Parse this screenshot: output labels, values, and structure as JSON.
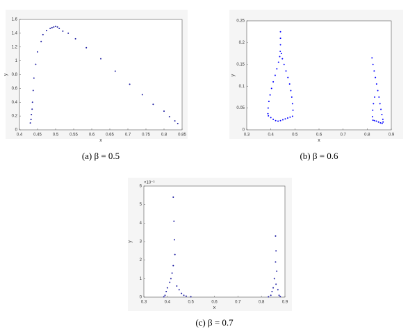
{
  "chart_data": [
    {
      "type": "scatter",
      "caption": "(a) β = 0.5",
      "xlabel": "x",
      "ylabel": "y",
      "color": "#1a1aa0",
      "x": [
        0.43,
        0.432,
        0.433,
        0.435,
        0.436,
        0.438,
        0.44,
        0.445,
        0.45,
        0.46,
        0.465,
        0.475,
        0.485,
        0.49,
        0.495,
        0.5,
        0.505,
        0.51,
        0.52,
        0.535,
        0.555,
        0.585,
        0.625,
        0.665,
        0.705,
        0.74,
        0.77,
        0.8,
        0.815,
        0.83,
        0.838
      ],
      "values": [
        0.1,
        0.15,
        0.22,
        0.3,
        0.4,
        0.57,
        0.75,
        0.95,
        1.13,
        1.28,
        1.38,
        1.44,
        1.47,
        1.48,
        1.49,
        1.5,
        1.49,
        1.47,
        1.43,
        1.4,
        1.32,
        1.19,
        1.03,
        0.85,
        0.66,
        0.51,
        0.37,
        0.27,
        0.19,
        0.13,
        0.09
      ],
      "xlim": [
        0.4,
        0.85
      ],
      "xticks": [
        0.4,
        0.45,
        0.5,
        0.55,
        0.6,
        0.65,
        0.7,
        0.75,
        0.8,
        0.85
      ],
      "ylim": [
        0,
        1.6
      ],
      "yticks": [
        0,
        0.2,
        0.4,
        0.6,
        0.8,
        1,
        1.2,
        1.4,
        1.6
      ]
    },
    {
      "type": "scatter",
      "caption": "(b) β = 0.6",
      "xlabel": "x",
      "ylabel": "y",
      "color": "#0000ff",
      "x": [
        0.44,
        0.44,
        0.44,
        0.439,
        0.437,
        0.432,
        0.425,
        0.418,
        0.41,
        0.403,
        0.397,
        0.392,
        0.389,
        0.388,
        0.39,
        0.4,
        0.41,
        0.42,
        0.43,
        0.44,
        0.45,
        0.46,
        0.47,
        0.48,
        0.49,
        0.492,
        0.49,
        0.487,
        0.483,
        0.478,
        0.471,
        0.463,
        0.455,
        0.448,
        0.444,
        0.82,
        0.824,
        0.829,
        0.834,
        0.839,
        0.844,
        0.849,
        0.853,
        0.857,
        0.861,
        0.865,
        0.866,
        0.862,
        0.855,
        0.847,
        0.838,
        0.83,
        0.824,
        0.822,
        0.823,
        0.826,
        0.831
      ],
      "values": [
        0.225,
        0.21,
        0.195,
        0.18,
        0.168,
        0.155,
        0.14,
        0.125,
        0.11,
        0.095,
        0.08,
        0.065,
        0.05,
        0.037,
        0.032,
        0.028,
        0.024,
        0.021,
        0.02,
        0.021,
        0.023,
        0.025,
        0.027,
        0.029,
        0.031,
        0.045,
        0.06,
        0.075,
        0.09,
        0.105,
        0.12,
        0.135,
        0.15,
        0.163,
        0.175,
        0.165,
        0.15,
        0.135,
        0.12,
        0.105,
        0.09,
        0.075,
        0.06,
        0.047,
        0.035,
        0.024,
        0.018,
        0.015,
        0.016,
        0.018,
        0.02,
        0.021,
        0.022,
        0.03,
        0.045,
        0.06,
        0.075
      ],
      "xlim": [
        0.3,
        0.9
      ],
      "xticks": [
        0.3,
        0.4,
        0.5,
        0.6,
        0.7,
        0.8,
        0.9
      ],
      "ylim": [
        0,
        0.25
      ],
      "yticks": [
        0,
        0.05,
        0.1,
        0.15,
        0.2,
        0.25
      ]
    },
    {
      "type": "scatter",
      "caption": "(c) β = 0.7",
      "xlabel": "x",
      "ylabel": "y",
      "exponent": "×10⁻³",
      "color": "#1a1aa0",
      "x": [
        0.425,
        0.428,
        0.43,
        0.432,
        0.425,
        0.42,
        0.415,
        0.44,
        0.45,
        0.46,
        0.47,
        0.39,
        0.395,
        0.4,
        0.41,
        0.48,
        0.5,
        0.385,
        0.86,
        0.862,
        0.86,
        0.865,
        0.855,
        0.862,
        0.87,
        0.85,
        0.845,
        0.875,
        0.84,
        0.88,
        0.83
      ],
      "values": [
        0.0054,
        0.0041,
        0.0031,
        0.0023,
        0.0017,
        0.0013,
        0.001,
        0.0006,
        0.0004,
        0.0002,
        0.0001,
        0.0001,
        0.0003,
        0.0005,
        0.0008,
        5e-05,
        2e-05,
        2e-05,
        0.0033,
        0.0025,
        0.0019,
        0.0014,
        0.001,
        0.0007,
        0.0004,
        0.0005,
        0.0003,
        0.0001,
        0.0001,
        3e-05,
        2e-05
      ],
      "xlim": [
        0.3,
        0.9
      ],
      "xticks": [
        0.3,
        0.4,
        0.5,
        0.6,
        0.7,
        0.8,
        0.9
      ],
      "ylim": [
        0,
        0.006
      ],
      "yticks": [
        0,
        {
          "value": 0.001,
          "label": "1"
        },
        {
          "value": 0.002,
          "label": "2"
        },
        {
          "value": 0.003,
          "label": "3"
        },
        {
          "value": 0.004,
          "label": "4"
        },
        {
          "value": 0.005,
          "label": "5"
        },
        {
          "value": 0.006,
          "label": "6"
        }
      ]
    }
  ]
}
